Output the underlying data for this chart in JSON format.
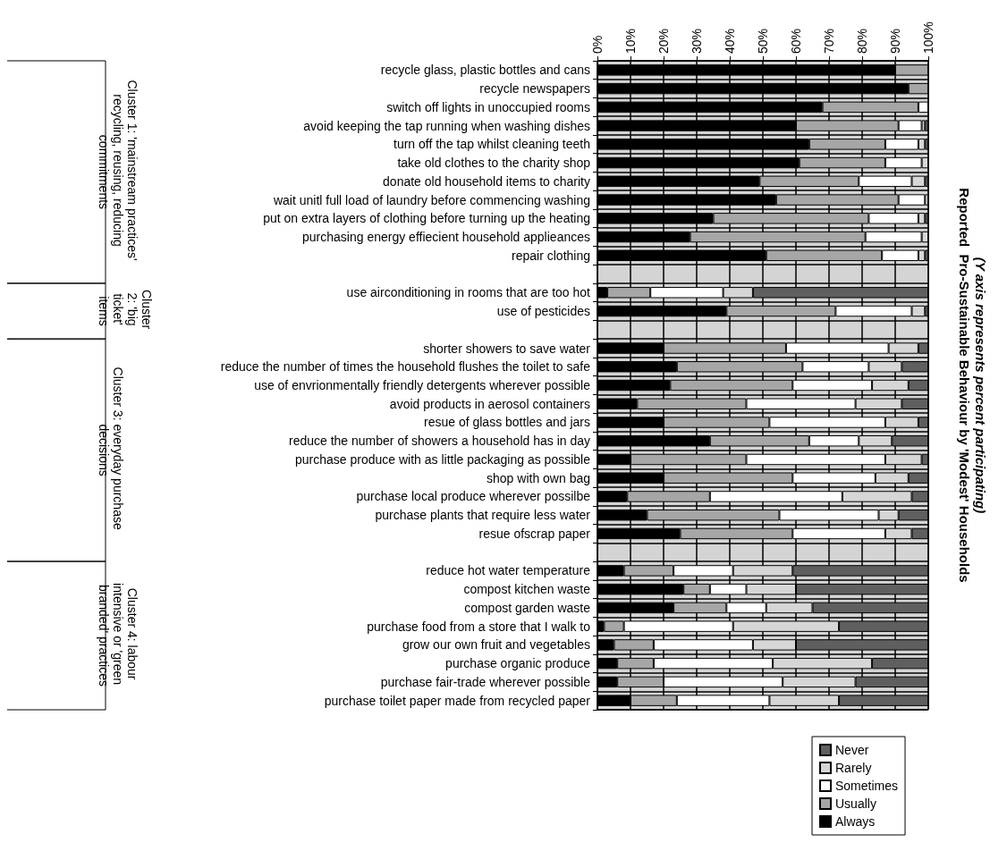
{
  "chart_data": {
    "type": "bar",
    "orientation": "horizontal",
    "stacked": true,
    "title": "Reported  Pro-Sustainable Behaviour by 'Modest' Households",
    "subtitle": "(Y axis represents percent participating)",
    "categories": [
      "recycle glass, plastic bottles and cans",
      "recycle newspapers",
      "switch off lights in unoccupied rooms",
      "avoid keeping the tap running when washing dishes",
      "turn off the tap whilst cleaning teeth",
      "take old clothes to the charity shop",
      "donate old household items to charity",
      "wait unitl full load of laundry before commencing washing",
      "put on extra layers of clothing before turning up the heating",
      "purchasing energy effiecient household applieances",
      "repair clothing",
      null,
      "use airconditioning in rooms that are too hot",
      "use of pesticides",
      null,
      "shorter showers to save water",
      "reduce the number of times the household flushes the toilet to safe",
      "use of envrionmentally friendly detergents wherever possible",
      "avoid products in aerosol containers",
      "resue of glass bottles and jars",
      "reduce the number of showers a household has in day",
      "purchase produce with as little packaging as possible",
      "shop with own bag",
      "purchase local produce wherever possilbe",
      "purchase plants that require less water",
      "resue ofscrap paper",
      null,
      "reduce hot water temperature",
      "compost kitchen waste",
      "compost garden waste",
      "purchase food from a store that I walk to",
      "grow our own fruit and vegetables",
      "purchase organic produce",
      "purchase fair-trade wherever possible",
      "purchase toilet paper made from recycled paper"
    ],
    "series": [
      {
        "name": "Always",
        "color": "#000000",
        "values": [
          90,
          94,
          68,
          60,
          64,
          61,
          49,
          54,
          35,
          28,
          51,
          null,
          3,
          39,
          null,
          20,
          24,
          22,
          12,
          20,
          34,
          10,
          20,
          9,
          15,
          25,
          null,
          8,
          26,
          23,
          2,
          5,
          6,
          6,
          10
        ]
      },
      {
        "name": "Usually",
        "color": "#a6a6a6",
        "values": [
          10,
          6,
          29,
          31,
          23,
          26,
          30,
          37,
          47,
          53,
          35,
          null,
          13,
          33,
          null,
          37,
          38,
          37,
          33,
          32,
          30,
          35,
          39,
          25,
          40,
          34,
          null,
          15,
          8,
          16,
          6,
          12,
          11,
          14,
          14
        ]
      },
      {
        "name": "Sometimes",
        "color": "#ffffff",
        "values": [
          0,
          0,
          3,
          7,
          10,
          11,
          16,
          8,
          15,
          17,
          11,
          null,
          22,
          23,
          null,
          31,
          20,
          24,
          33,
          35,
          15,
          42,
          25,
          40,
          30,
          28,
          null,
          18,
          11,
          12,
          33,
          30,
          36,
          36,
          28
        ]
      },
      {
        "name": "Rarely",
        "color": "#d6d6d6",
        "values": [
          0,
          0,
          0,
          1,
          2,
          2,
          4,
          1,
          2,
          2,
          2,
          null,
          9,
          4,
          null,
          9,
          10,
          11,
          14,
          10,
          10,
          11,
          10,
          21,
          6,
          8,
          null,
          18,
          15,
          14,
          32,
          13,
          30,
          22,
          21
        ]
      },
      {
        "name": "Never",
        "color": "#5f5f5f",
        "values": [
          0,
          0,
          0,
          1,
          1,
          0,
          1,
          0,
          1,
          0,
          1,
          null,
          53,
          1,
          null,
          3,
          8,
          6,
          8,
          3,
          11,
          2,
          6,
          5,
          9,
          5,
          null,
          41,
          40,
          35,
          27,
          40,
          17,
          22,
          27
        ]
      }
    ],
    "xlim": [
      0,
      100
    ],
    "xticks": [
      {
        "value": 0,
        "label": "0%"
      },
      {
        "value": 10,
        "label": "10%"
      },
      {
        "value": 20,
        "label": "20%"
      },
      {
        "value": 30,
        "label": "30%"
      },
      {
        "value": 40,
        "label": "40%"
      },
      {
        "value": 50,
        "label": "50%"
      },
      {
        "value": 60,
        "label": "60%"
      },
      {
        "value": 70,
        "label": "70%"
      },
      {
        "value": 80,
        "label": "80%"
      },
      {
        "value": 90,
        "label": "90%"
      },
      {
        "value": 100,
        "label": "100%"
      }
    ],
    "annotations": [
      "Cluster 1: 'mainstream practices' recycling, reusing, reducing commitments",
      "Cluster 2: 'big ticket' items",
      "Cluster 3: everyday purchase decisions",
      "Cluster 4: labour intensive or 'green branded' practices"
    ],
    "grid": true,
    "legend": "bottom"
  }
}
